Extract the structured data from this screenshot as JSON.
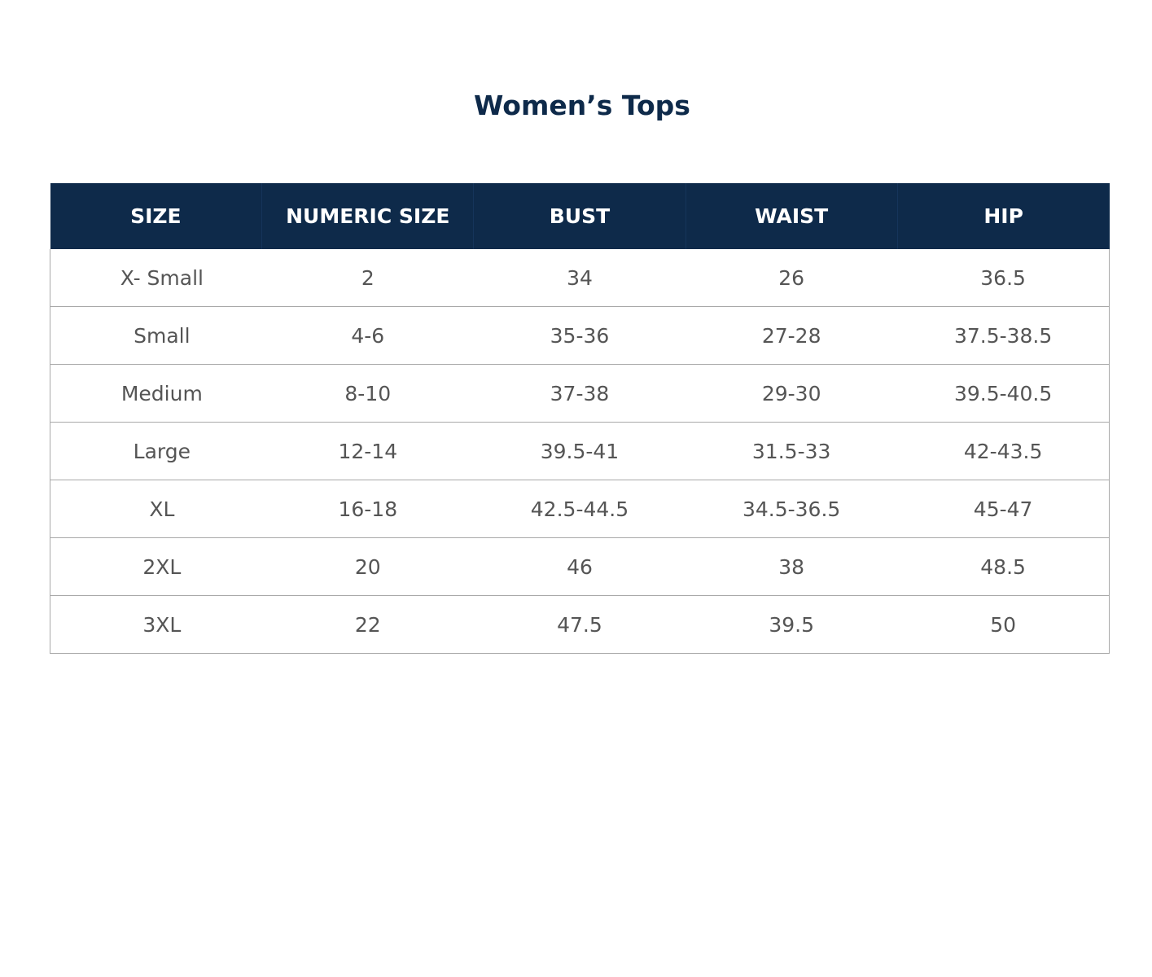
{
  "title": "Women’s Tops",
  "colors": {
    "header_bg": "#0e2a4a",
    "header_text": "#ffffff",
    "cell_text": "#555555",
    "grid": "#a9a9a9"
  },
  "table": {
    "headers": [
      "SIZE",
      "NUMERIC SIZE",
      "BUST",
      "WAIST",
      "HIP"
    ],
    "rows": [
      [
        "X- Small",
        "2",
        "34",
        "26",
        "36.5"
      ],
      [
        "Small",
        "4-6",
        "35-36",
        "27-28",
        "37.5-38.5"
      ],
      [
        "Medium",
        "8-10",
        "37-38",
        "29-30",
        "39.5-40.5"
      ],
      [
        "Large",
        "12-14",
        "39.5-41",
        "31.5-33",
        "42-43.5"
      ],
      [
        "XL",
        "16-18",
        "42.5-44.5",
        "34.5-36.5",
        "45-47"
      ],
      [
        "2XL",
        "20",
        "46",
        "38",
        "48.5"
      ],
      [
        "3XL",
        "22",
        "47.5",
        "39.5",
        "50"
      ]
    ]
  }
}
